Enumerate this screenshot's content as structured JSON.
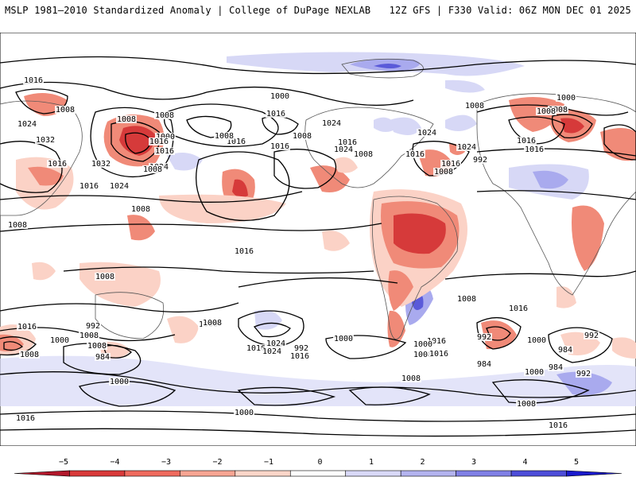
{
  "header": {
    "left_title": "MSLP 1981–2010 Standardized Anomaly | College of DuPage NEXLAB",
    "right_title": "12Z GFS | F330 Valid: 06Z MON DEC 01 2025"
  },
  "isobar_labels": [
    "1016",
    "1008",
    "1024",
    "1032",
    "1016",
    "1008",
    "1000",
    "1008",
    "1016",
    "1016",
    "1032",
    "1016",
    "1024",
    "1024",
    "1008",
    "1016",
    "1008",
    "1000",
    "1016",
    "1008",
    "1024",
    "1016",
    "1024",
    "1016",
    "1024",
    "1008",
    "1016",
    "1008",
    "1016",
    "1016",
    "1008",
    "1008",
    "1016",
    "1008",
    "1000",
    "1008",
    "992",
    "1008",
    "1016",
    "1024",
    "1000",
    "1008",
    "1008",
    "1016",
    "1024",
    "1016",
    "992",
    "984",
    "1008",
    "1008",
    "1016",
    "992",
    "1008",
    "1000",
    "1024",
    "1016",
    "1000",
    "992",
    "984",
    "1000",
    "1008",
    "1016",
    "1000",
    "1008",
    "1016",
    "1000",
    "1008",
    "984",
    "992",
    "1016",
    "992",
    "984",
    "1016",
    "1000",
    "1000",
    "1008"
  ],
  "colorbar": {
    "ticks": [
      "−5",
      "−4",
      "−3",
      "−2",
      "−1",
      "0",
      "1",
      "2",
      "3",
      "4",
      "5"
    ],
    "colors": [
      "#b2182b",
      "#d93a3a",
      "#ef6a5e",
      "#f7a593",
      "#fcd6c9",
      "#ffffff",
      "#d9d9f7",
      "#b3b3ef",
      "#8080e6",
      "#4d4dd9",
      "#1a1acc"
    ]
  },
  "colors": {
    "strong_neg": "#d63a3a",
    "neg": "#f08a78",
    "weak_neg": "#fbd2c6",
    "weak_pos": "#d7d8f6",
    "pos": "#a9aaee",
    "strong_pos": "#5a5ad9"
  }
}
